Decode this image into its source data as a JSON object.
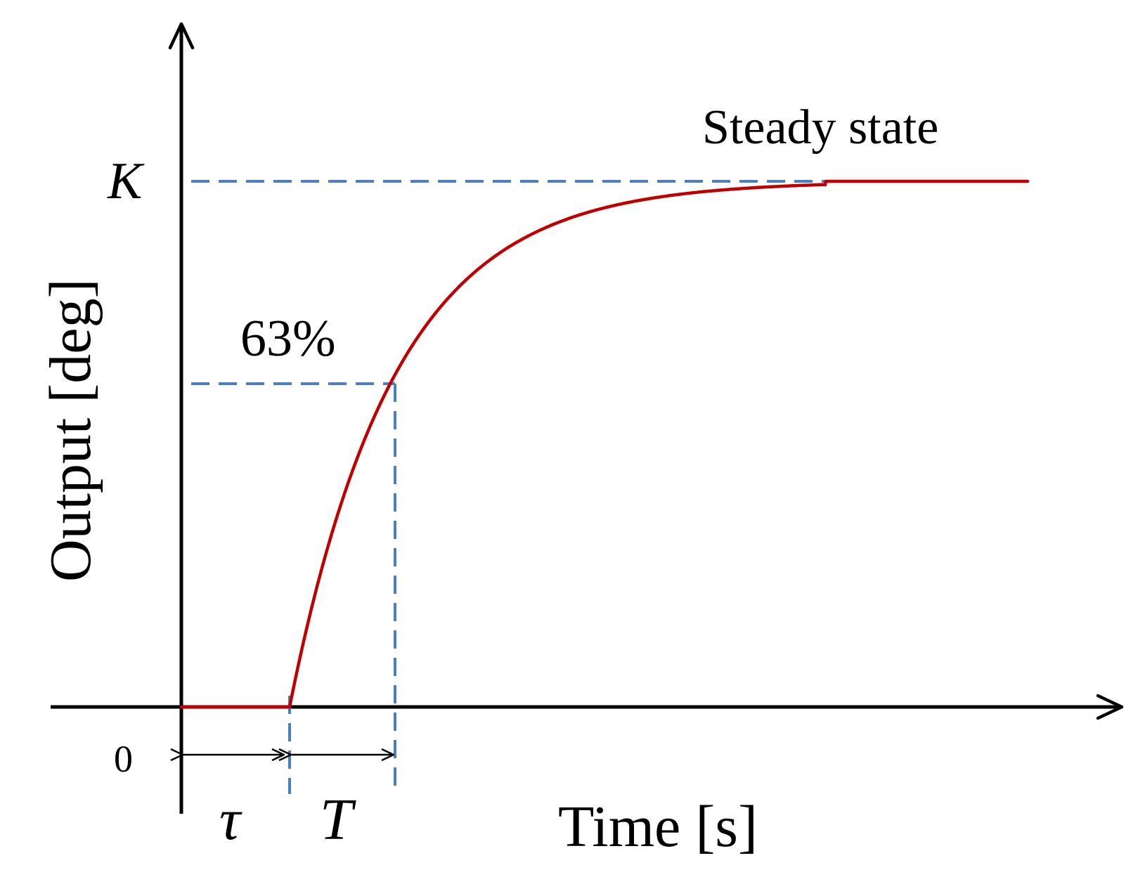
{
  "labels": {
    "steady_state": "Steady state",
    "k": "K",
    "percent_63": "63%",
    "zero": "0",
    "tau": "τ",
    "time_constant": "T",
    "x_axis": "Time [s]",
    "y_axis": "Output [deg]"
  },
  "colors": {
    "axis": "#000000",
    "curve": "#c00000",
    "guide": "#4a7fc1"
  }
}
